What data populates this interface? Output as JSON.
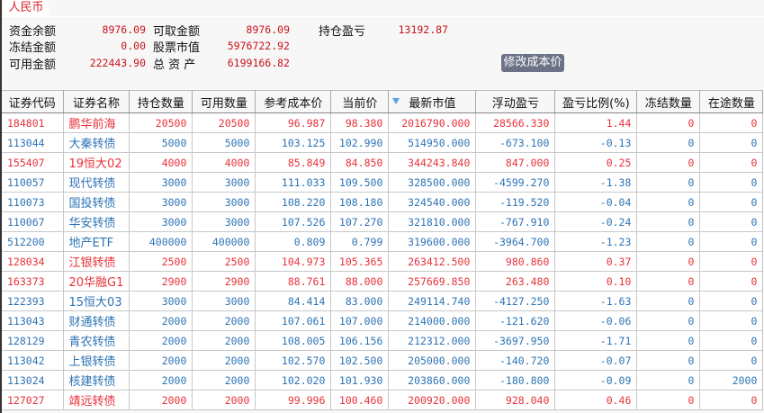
{
  "tab": {
    "label": "人民币"
  },
  "summary": [
    {
      "label": "资金余额",
      "value": "8976.09"
    },
    {
      "label": "可取金额",
      "value": "8976.09"
    },
    {
      "label": "持仓盈亏",
      "value": "13192.87"
    },
    {
      "label": "冻结金额",
      "value": "0.00"
    },
    {
      "label": "股票市值",
      "value": "5976722.92"
    },
    {
      "label": "可用金额",
      "value": "222443.90"
    },
    {
      "label": "总 资 产",
      "value": "6199166.82"
    }
  ],
  "edit_cost_button": "修改成本价",
  "colors": {
    "up": "#e8323a",
    "down": "#2e74b5",
    "value": "#c8141c"
  },
  "table": {
    "sort_icon": "triangle-down-icon",
    "sorted_column": "最新市值",
    "headers": [
      "证券代码",
      "证券名称",
      "持仓数量",
      "可用数量",
      "参考成本价",
      "当前价",
      "最新市值",
      "浮动盈亏",
      "盈亏比例(%)",
      "冻结数量",
      "在途数量"
    ],
    "rows": [
      {
        "trend": "up",
        "cells": [
          "184801",
          "鹏华前海",
          "20500",
          "20500",
          "96.987",
          "98.380",
          "2016790.000",
          "28566.330",
          "1.44",
          "0",
          "0"
        ]
      },
      {
        "trend": "down",
        "cells": [
          "113044",
          "大秦转债",
          "5000",
          "5000",
          "103.125",
          "102.990",
          "514950.000",
          "-673.100",
          "-0.13",
          "0",
          "0"
        ]
      },
      {
        "trend": "up",
        "cells": [
          "155407",
          "19恒大02",
          "4000",
          "4000",
          "85.849",
          "84.850",
          "344243.840",
          "847.000",
          "0.25",
          "0",
          "0"
        ]
      },
      {
        "trend": "down",
        "cells": [
          "110057",
          "现代转债",
          "3000",
          "3000",
          "111.033",
          "109.500",
          "328500.000",
          "-4599.270",
          "-1.38",
          "0",
          "0"
        ]
      },
      {
        "trend": "down",
        "cells": [
          "110073",
          "国投转债",
          "3000",
          "3000",
          "108.220",
          "108.180",
          "324540.000",
          "-119.520",
          "-0.04",
          "0",
          "0"
        ]
      },
      {
        "trend": "down",
        "cells": [
          "110067",
          "华安转债",
          "3000",
          "3000",
          "107.526",
          "107.270",
          "321810.000",
          "-767.910",
          "-0.24",
          "0",
          "0"
        ]
      },
      {
        "trend": "down",
        "cells": [
          "512200",
          "地产ETF",
          "400000",
          "400000",
          "0.809",
          "0.799",
          "319600.000",
          "-3964.700",
          "-1.23",
          "0",
          "0"
        ]
      },
      {
        "trend": "up",
        "cells": [
          "128034",
          "江银转债",
          "2500",
          "2500",
          "104.973",
          "105.365",
          "263412.500",
          "980.860",
          "0.37",
          "0",
          "0"
        ]
      },
      {
        "trend": "up",
        "cells": [
          "163373",
          "20华融G1",
          "2900",
          "2900",
          "88.761",
          "88.000",
          "257669.850",
          "263.480",
          "0.10",
          "0",
          "0"
        ]
      },
      {
        "trend": "down",
        "cells": [
          "122393",
          "15恒大03",
          "3000",
          "3000",
          "84.414",
          "83.000",
          "249114.740",
          "-4127.250",
          "-1.63",
          "0",
          "0"
        ]
      },
      {
        "trend": "down",
        "cells": [
          "113043",
          "财通转债",
          "2000",
          "2000",
          "107.061",
          "107.000",
          "214000.000",
          "-121.620",
          "-0.06",
          "0",
          "0"
        ]
      },
      {
        "trend": "down",
        "cells": [
          "128129",
          "青农转债",
          "2000",
          "2000",
          "108.005",
          "106.156",
          "212312.000",
          "-3697.950",
          "-1.71",
          "0",
          "0"
        ]
      },
      {
        "trend": "down",
        "cells": [
          "113042",
          "上银转债",
          "2000",
          "2000",
          "102.570",
          "102.500",
          "205000.000",
          "-140.720",
          "-0.07",
          "0",
          "0"
        ]
      },
      {
        "trend": "down",
        "cells": [
          "113024",
          "核建转债",
          "2000",
          "2000",
          "102.020",
          "101.930",
          "203860.000",
          "-180.800",
          "-0.09",
          "0",
          "2000"
        ]
      },
      {
        "trend": "up",
        "cells": [
          "127027",
          "靖远转债",
          "2000",
          "2000",
          "99.996",
          "100.460",
          "200920.000",
          "928.040",
          "0.46",
          "0",
          "0"
        ]
      }
    ]
  }
}
